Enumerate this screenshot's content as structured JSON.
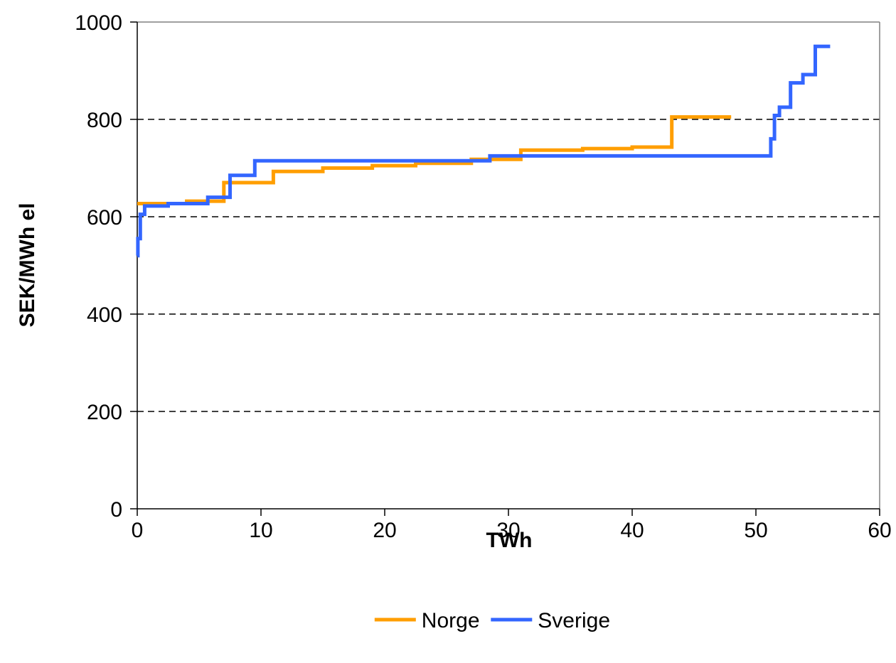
{
  "chart_data": {
    "type": "line",
    "title": "",
    "xlabel": "TWh",
    "ylabel": "SEK/MWh el",
    "xlim": [
      0,
      60
    ],
    "ylim": [
      0,
      1000
    ],
    "x_ticks": [
      0,
      10,
      20,
      30,
      40,
      50,
      60
    ],
    "y_ticks": [
      0,
      200,
      400,
      600,
      800,
      1000
    ],
    "grid": "horizontal dashed",
    "legend": "bottom",
    "series": [
      {
        "name": "Norge",
        "color": "#FF9E00",
        "x": [
          0,
          4,
          4,
          7,
          7,
          11,
          11,
          15,
          15,
          19,
          19,
          22.5,
          22.5,
          27,
          27,
          31,
          31,
          36,
          36,
          40,
          40,
          43.2,
          43.2,
          48
        ],
        "y": [
          627,
          627,
          632,
          632,
          670,
          670,
          693,
          693,
          700,
          700,
          705,
          705,
          710,
          710,
          718,
          718,
          737,
          737,
          740,
          740,
          743,
          743,
          805,
          805
        ]
      },
      {
        "name": "Sverige",
        "color": "#3366FF",
        "x": [
          0,
          0.05,
          0.05,
          0.25,
          0.25,
          0.6,
          0.6,
          2.5,
          2.5,
          5.7,
          5.7,
          7.5,
          7.5,
          9.5,
          9.5,
          28.5,
          28.5,
          51.2,
          51.2,
          51.5,
          51.5,
          51.9,
          51.9,
          52.8,
          52.8,
          53.8,
          53.8,
          54.8,
          54.8,
          56
        ],
        "y": [
          520,
          520,
          555,
          555,
          605,
          605,
          622,
          622,
          627,
          627,
          640,
          640,
          685,
          685,
          715,
          715,
          725,
          725,
          760,
          760,
          808,
          808,
          825,
          825,
          875,
          875,
          892,
          892,
          950,
          950
        ]
      }
    ]
  }
}
